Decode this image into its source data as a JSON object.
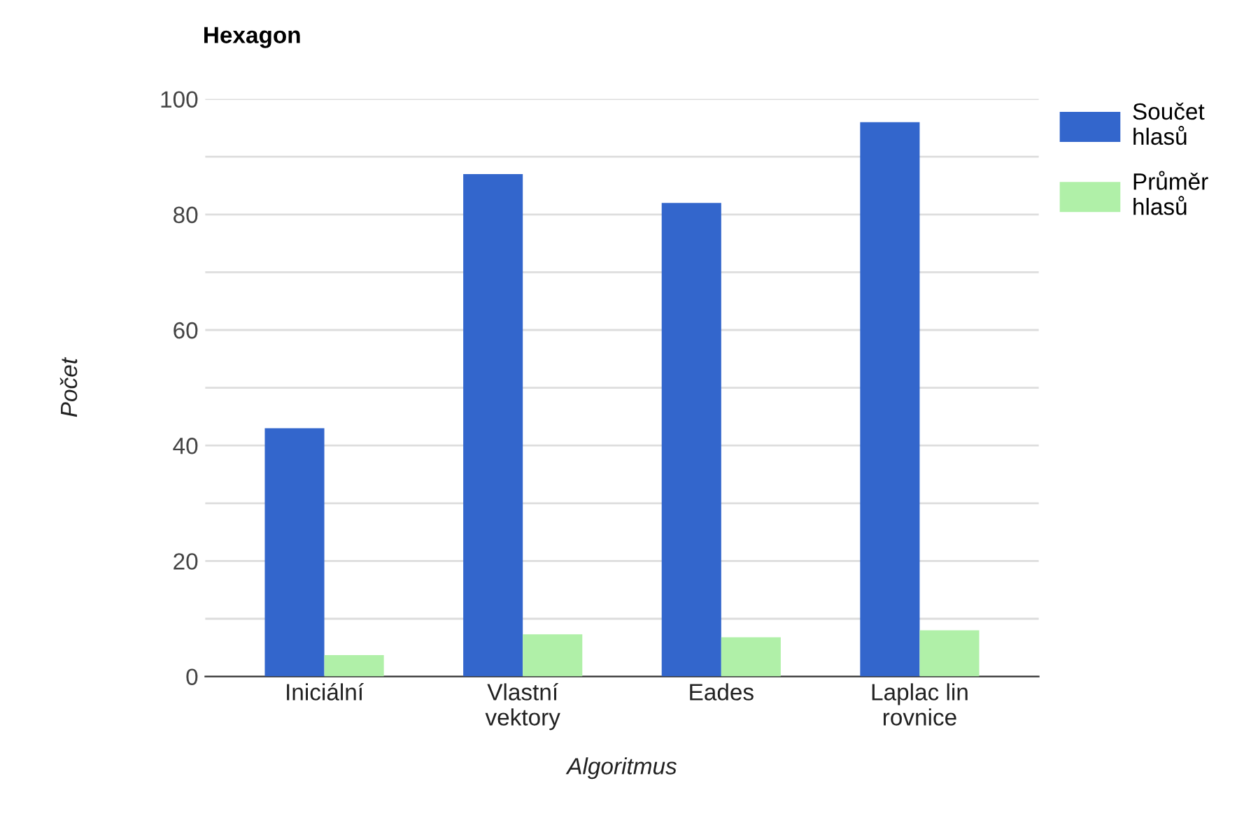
{
  "chart_data": {
    "type": "bar",
    "title": "Hexagon",
    "xlabel": "Algoritmus",
    "ylabel": "Počet",
    "categories": [
      "Iniciální",
      "Vlastní\nvektory",
      "Eades",
      "Laplac lin\nrovnice"
    ],
    "series": [
      {
        "name": "Součet\nhlasů",
        "color": "#3366cc",
        "values": [
          43,
          87,
          82,
          96
        ]
      },
      {
        "name": "Průměr\nhlasů",
        "color": "#b0f0a8",
        "values": [
          3.7,
          7.3,
          6.8,
          8.0
        ]
      }
    ],
    "ylim": [
      0,
      100
    ],
    "yticks": [
      0,
      {
        "value": 10,
        "label": null
      },
      20,
      {
        "value": 30,
        "label": null
      },
      40,
      {
        "value": 50,
        "label": null
      },
      60,
      {
        "value": 70,
        "label": null
      },
      80,
      {
        "value": 90,
        "label": null
      },
      100
    ],
    "grid": "y",
    "legend": "right"
  }
}
